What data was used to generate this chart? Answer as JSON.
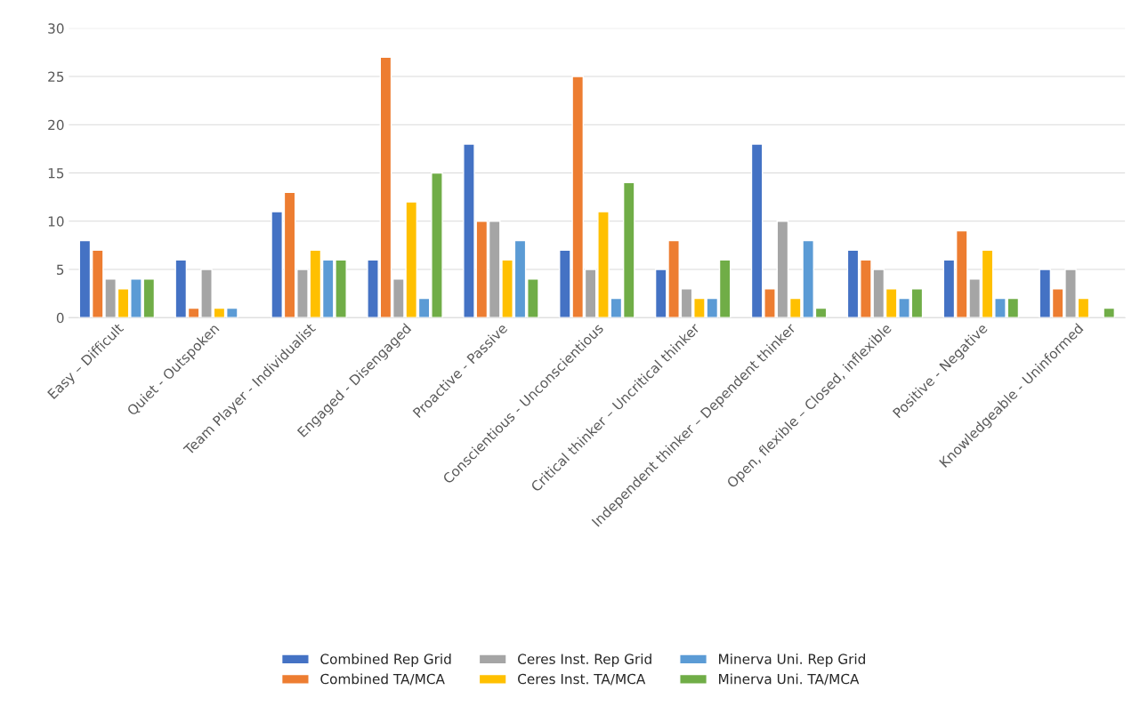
{
  "chart_data": {
    "type": "bar",
    "categories": [
      "Easy – Difficult",
      "Quiet - Outspoken",
      "Team Player - Individualist",
      "Engaged - Disengaged",
      "Proactive - Passive",
      "Conscientious - Unconscientious",
      "Critical thinker – Uncritical thinker",
      "Independent thinker – Dependent thinker",
      "Open, flexible – Closed, inflexible",
      "Positive - Negative",
      "Knowledgeable - Uninformed"
    ],
    "series": [
      {
        "name": "Combined Rep Grid",
        "color": "#4472c4",
        "values": [
          8,
          6,
          11,
          6,
          18,
          7,
          5,
          18,
          7,
          6,
          5
        ]
      },
      {
        "name": "Combined TA/MCA",
        "color": "#ed7d31",
        "values": [
          7,
          1,
          13,
          27,
          10,
          25,
          8,
          3,
          6,
          9,
          3
        ]
      },
      {
        "name": "Ceres Inst. Rep Grid",
        "color": "#a5a5a5",
        "values": [
          4,
          5,
          5,
          4,
          10,
          5,
          3,
          10,
          5,
          4,
          5
        ]
      },
      {
        "name": "Ceres Inst. TA/MCA",
        "color": "#ffc000",
        "values": [
          3,
          1,
          7,
          12,
          6,
          11,
          2,
          2,
          3,
          7,
          2
        ]
      },
      {
        "name": "Minerva Uni. Rep Grid",
        "color": "#5b9bd5",
        "values": [
          4,
          1,
          6,
          2,
          8,
          2,
          2,
          8,
          2,
          2,
          null
        ]
      },
      {
        "name": "Minerva Uni. TA/MCA",
        "color": "#70ad47",
        "values": [
          4,
          null,
          6,
          15,
          4,
          14,
          6,
          1,
          3,
          2,
          1
        ]
      }
    ],
    "ylim": [
      0,
      30
    ],
    "yticks": [
      0,
      5,
      10,
      15,
      20,
      25,
      30
    ],
    "grid": "y",
    "legend": "bottom"
  }
}
